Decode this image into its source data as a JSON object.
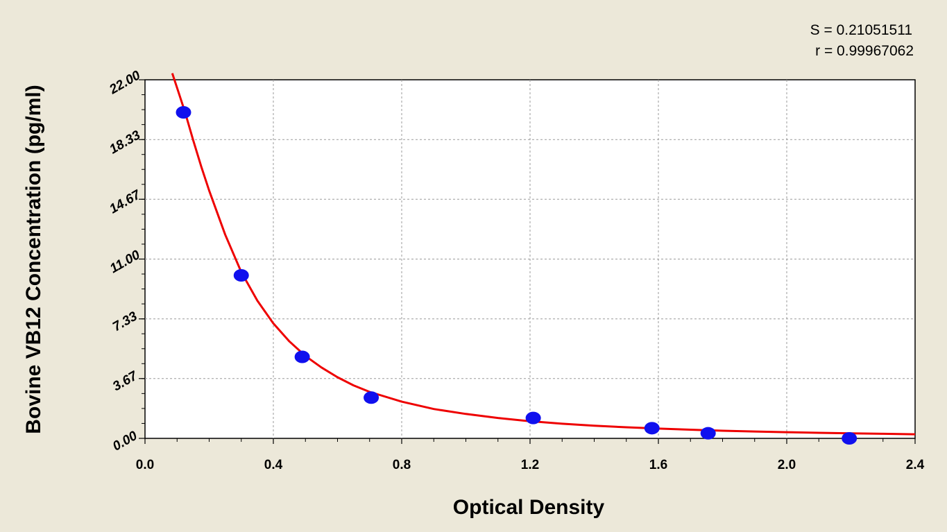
{
  "chart_data": {
    "type": "scatter",
    "title": "",
    "xlabel": "Optical Density",
    "ylabel": "Bovine VB12 Concentration (pg/ml)",
    "xlim": [
      0.0,
      2.4
    ],
    "ylim": [
      0.0,
      22.0
    ],
    "x_ticks": [
      0.0,
      0.4,
      0.8,
      1.2,
      1.6,
      2.0,
      2.4
    ],
    "x_tick_labels": [
      "0.0",
      "0.4",
      "0.8",
      "1.2",
      "1.6",
      "2.0",
      "2.4"
    ],
    "y_ticks": [
      0.0,
      3.67,
      7.33,
      11.0,
      14.67,
      18.33,
      22.0
    ],
    "y_tick_labels": [
      "0.00",
      "3.67",
      "7.33",
      "11.00",
      "14.67",
      "18.33",
      "22.00"
    ],
    "grid": true,
    "points": {
      "x": [
        0.12,
        0.3,
        0.49,
        0.705,
        1.21,
        1.58,
        1.755,
        2.195
      ],
      "y": [
        20.0,
        10.0,
        5.0,
        2.5,
        1.25,
        0.625,
        0.3125,
        0.0
      ],
      "color": "#1010ee"
    },
    "fit_curve": {
      "color": "#ee0000",
      "x": [
        0.085,
        0.1,
        0.125,
        0.15,
        0.175,
        0.2,
        0.25,
        0.3,
        0.35,
        0.4,
        0.45,
        0.5,
        0.55,
        0.6,
        0.65,
        0.7,
        0.8,
        0.9,
        1.0,
        1.1,
        1.2,
        1.3,
        1.4,
        1.5,
        1.6,
        1.7,
        1.8,
        1.9,
        2.0,
        2.1,
        2.2,
        2.3,
        2.4
      ],
      "y": [
        22.4,
        21.5,
        20.0,
        18.3,
        16.7,
        15.2,
        12.5,
        10.2,
        8.45,
        7.05,
        5.95,
        5.05,
        4.35,
        3.75,
        3.25,
        2.85,
        2.25,
        1.8,
        1.5,
        1.25,
        1.05,
        0.9,
        0.78,
        0.68,
        0.6,
        0.53,
        0.47,
        0.42,
        0.38,
        0.34,
        0.31,
        0.28,
        0.25
      ]
    },
    "annotations": [
      "S = 0.21051511",
      "r = 0.99967062"
    ]
  }
}
